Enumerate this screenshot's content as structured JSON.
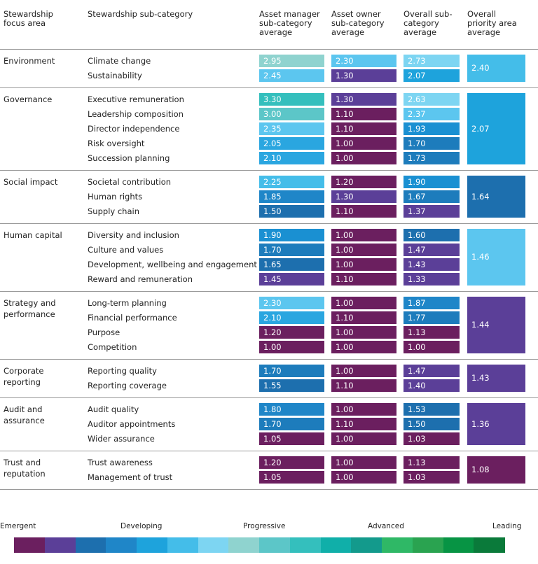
{
  "header": {
    "columns": [
      [
        "Stewardship",
        "focus area"
      ],
      [
        "Stewardship sub-category"
      ],
      [
        "Asset manager",
        "sub-category",
        "average"
      ],
      [
        "Asset owner",
        "sub-category",
        "average"
      ],
      [
        "Overall sub-",
        "category",
        "average"
      ],
      [
        "Overall",
        "priority area",
        "average"
      ]
    ]
  },
  "groups": [
    {
      "area": [
        "Environment"
      ],
      "priority": {
        "text": "2.40",
        "color": "#44bde9"
      },
      "rows": [
        {
          "sub": "Climate change",
          "cells": [
            {
              "text": "2.95",
              "color": "#8fd3cf"
            },
            {
              "text": "2.30",
              "color": "#5cc6ef"
            },
            {
              "text": "2.73",
              "color": "#7dd5f2"
            }
          ]
        },
        {
          "sub": "Sustainability",
          "cells": [
            {
              "text": "2.45",
              "color": "#5cc6ef"
            },
            {
              "text": "1.30",
              "color": "#5b3f98"
            },
            {
              "text": "2.07",
              "color": "#1ea3dc"
            }
          ]
        }
      ]
    },
    {
      "area": [
        "Governance"
      ],
      "priority": {
        "text": "2.07",
        "color": "#1ea3dc"
      },
      "rows": [
        {
          "sub": "Executive remuneration",
          "cells": [
            {
              "text": "3.30",
              "color": "#34bfbd"
            },
            {
              "text": "1.30",
              "color": "#5b3f98"
            },
            {
              "text": "2.63",
              "color": "#7dd5f2"
            }
          ]
        },
        {
          "sub": "Leadership composition",
          "cells": [
            {
              "text": "3.00",
              "color": "#5cc6c8"
            },
            {
              "text": "1.10",
              "color": "#6b1f5f"
            },
            {
              "text": "2.37",
              "color": "#5cc6ef"
            }
          ]
        },
        {
          "sub": "Director independence",
          "cells": [
            {
              "text": "2.35",
              "color": "#5cc6ef"
            },
            {
              "text": "1.10",
              "color": "#6b1f5f"
            },
            {
              "text": "1.93",
              "color": "#1a90d2"
            }
          ]
        },
        {
          "sub": "Risk oversight",
          "cells": [
            {
              "text": "2.05",
              "color": "#2aa6e0"
            },
            {
              "text": "1.00",
              "color": "#6b1f5f"
            },
            {
              "text": "1.70",
              "color": "#1d7cbc"
            }
          ]
        },
        {
          "sub": "Succession planning",
          "cells": [
            {
              "text": "2.10",
              "color": "#2aa6e0"
            },
            {
              "text": "1.00",
              "color": "#6b1f5f"
            },
            {
              "text": "1.73",
              "color": "#1d7cbc"
            }
          ]
        }
      ]
    },
    {
      "area": [
        "Social impact"
      ],
      "priority": {
        "text": "1.64",
        "color": "#1d6fae"
      },
      "rows": [
        {
          "sub": "Societal contribution",
          "cells": [
            {
              "text": "2.25",
              "color": "#44bde9"
            },
            {
              "text": "1.20",
              "color": "#6b1f5f"
            },
            {
              "text": "1.90",
              "color": "#1a90d2"
            }
          ]
        },
        {
          "sub": "Human rights",
          "cells": [
            {
              "text": "1.85",
              "color": "#1f86c8"
            },
            {
              "text": "1.30",
              "color": "#5b3f98"
            },
            {
              "text": "1.67",
              "color": "#1d7cbc"
            }
          ]
        },
        {
          "sub": "Supply chain",
          "cells": [
            {
              "text": "1.50",
              "color": "#1d6fae"
            },
            {
              "text": "1.10",
              "color": "#6b1f5f"
            },
            {
              "text": "1.37",
              "color": "#5b3f98"
            }
          ]
        }
      ]
    },
    {
      "area": [
        "Human capital"
      ],
      "priority": {
        "text": "1.46",
        "color": "#5cc6ef"
      },
      "rows": [
        {
          "sub": "Diversity and inclusion",
          "cells": [
            {
              "text": "1.90",
              "color": "#1a90d2"
            },
            {
              "text": "1.00",
              "color": "#6b1f5f"
            },
            {
              "text": "1.60",
              "color": "#1d6fae"
            }
          ]
        },
        {
          "sub": "Culture and values",
          "cells": [
            {
              "text": "1.70",
              "color": "#1d7cbc"
            },
            {
              "text": "1.00",
              "color": "#6b1f5f"
            },
            {
              "text": "1.47",
              "color": "#5b3f98"
            }
          ]
        },
        {
          "sub": "Development, wellbeing and engagement",
          "cells": [
            {
              "text": "1.65",
              "color": "#1d6fae"
            },
            {
              "text": "1.00",
              "color": "#6b1f5f"
            },
            {
              "text": "1.43",
              "color": "#5b3f98"
            }
          ]
        },
        {
          "sub": "Reward and remuneration",
          "cells": [
            {
              "text": "1.45",
              "color": "#5b3f98"
            },
            {
              "text": "1.10",
              "color": "#6b1f5f"
            },
            {
              "text": "1.33",
              "color": "#5b3f98"
            }
          ]
        }
      ]
    },
    {
      "area": [
        "Strategy and",
        "performance"
      ],
      "priority": {
        "text": "1.44",
        "color": "#5b3f98"
      },
      "rows": [
        {
          "sub": "Long-term planning",
          "cells": [
            {
              "text": "2.30",
              "color": "#5cc6ef"
            },
            {
              "text": "1.00",
              "color": "#6b1f5f"
            },
            {
              "text": "1.87",
              "color": "#1f86c8"
            }
          ]
        },
        {
          "sub": "Financial performance",
          "cells": [
            {
              "text": "2.10",
              "color": "#2aa6e0"
            },
            {
              "text": "1.10",
              "color": "#6b1f5f"
            },
            {
              "text": "1.77",
              "color": "#1d7cbc"
            }
          ]
        },
        {
          "sub": "Purpose",
          "cells": [
            {
              "text": "1.20",
              "color": "#6b1f5f"
            },
            {
              "text": "1.00",
              "color": "#6b1f5f"
            },
            {
              "text": "1.13",
              "color": "#6b1f5f"
            }
          ]
        },
        {
          "sub": "Competition",
          "cells": [
            {
              "text": "1.00",
              "color": "#6b1f5f"
            },
            {
              "text": "1.00",
              "color": "#6b1f5f"
            },
            {
              "text": "1.00",
              "color": "#6b1f5f"
            }
          ]
        }
      ]
    },
    {
      "area": [
        "Corporate",
        "reporting"
      ],
      "priority": {
        "text": "1.43",
        "color": "#5b3f98"
      },
      "rows": [
        {
          "sub": "Reporting quality",
          "cells": [
            {
              "text": "1.70",
              "color": "#1d7cbc"
            },
            {
              "text": "1.00",
              "color": "#6b1f5f"
            },
            {
              "text": "1.47",
              "color": "#5b3f98"
            }
          ]
        },
        {
          "sub": "Reporting coverage",
          "cells": [
            {
              "text": "1.55",
              "color": "#1d6fae"
            },
            {
              "text": "1.10",
              "color": "#6b1f5f"
            },
            {
              "text": "1.40",
              "color": "#5b3f98"
            }
          ]
        }
      ]
    },
    {
      "area": [
        "Audit and",
        "assurance"
      ],
      "priority": {
        "text": "1.36",
        "color": "#5b3f98"
      },
      "rows": [
        {
          "sub": "Audit quality",
          "cells": [
            {
              "text": "1.80",
              "color": "#1f86c8"
            },
            {
              "text": "1.00",
              "color": "#6b1f5f"
            },
            {
              "text": "1.53",
              "color": "#1d6fae"
            }
          ]
        },
        {
          "sub": "Auditor appointments",
          "cells": [
            {
              "text": "1.70",
              "color": "#1d7cbc"
            },
            {
              "text": "1.10",
              "color": "#6b1f5f"
            },
            {
              "text": "1.50",
              "color": "#1d6fae"
            }
          ]
        },
        {
          "sub": "Wider assurance",
          "cells": [
            {
              "text": "1.05",
              "color": "#6b1f5f"
            },
            {
              "text": "1.00",
              "color": "#6b1f5f"
            },
            {
              "text": "1.03",
              "color": "#6b1f5f"
            }
          ]
        }
      ]
    },
    {
      "area": [
        "Trust and",
        "reputation"
      ],
      "priority": {
        "text": "1.08",
        "color": "#6b1f5f"
      },
      "rows": [
        {
          "sub": "Trust awareness",
          "cells": [
            {
              "text": "1.20",
              "color": "#6b1f5f"
            },
            {
              "text": "1.00",
              "color": "#6b1f5f"
            },
            {
              "text": "1.13",
              "color": "#6b1f5f"
            }
          ]
        },
        {
          "sub": "Management of trust",
          "cells": [
            {
              "text": "1.05",
              "color": "#6b1f5f"
            },
            {
              "text": "1.00",
              "color": "#6b1f5f"
            },
            {
              "text": "1.03",
              "color": "#6b1f5f"
            }
          ]
        }
      ]
    }
  ],
  "legend": {
    "labels": [
      "Emergent",
      "Developing",
      "Progressive",
      "Advanced",
      "Leading"
    ],
    "colors": [
      "#6b1f5f",
      "#5b3f98",
      "#1d6fae",
      "#1f86c8",
      "#1ea3dc",
      "#44bde9",
      "#7dd5f2",
      "#8fd3cf",
      "#5cc6c8",
      "#34bfbd",
      "#10afa9",
      "#139a8c",
      "#2fb866",
      "#2aa350",
      "#079444",
      "#0a7a3a"
    ]
  }
}
